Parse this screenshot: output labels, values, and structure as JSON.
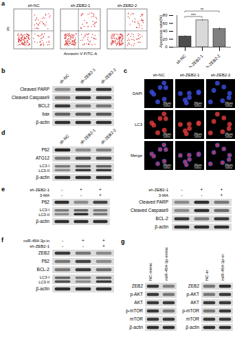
{
  "chart_data": {
    "type": "bar",
    "categories": [
      "sh-NC",
      "sh-ZEB2-1",
      "sh-ZEB2-2"
    ],
    "values": [
      27,
      68,
      46
    ],
    "errors": [
      2,
      1.5,
      3
    ],
    "ylabel": "Apoptosis rate(%)",
    "ylim": [
      0,
      80
    ],
    "yticks": [
      0,
      20,
      40,
      60,
      80
    ],
    "colors": [
      "#4d4d4d",
      "#d9d9d9",
      "#808080"
    ],
    "annotations": [
      {
        "text": "***",
        "from": 0,
        "to": 1
      },
      {
        "text": "**",
        "from": 0,
        "to": 2
      }
    ]
  },
  "figure": {
    "a": {
      "label": "a",
      "flow": {
        "samples": [
          "sh-NC",
          "sh-ZEB2-1",
          "sh-ZEB2-2"
        ],
        "x_label": "Annexin V FITC-A",
        "y_label": "PI"
      }
    },
    "b": {
      "label": "b",
      "blot": {
        "lanes": [
          "sh-NC",
          "sh-ZEB2-1",
          "sh-ZEB2-2"
        ],
        "rows": [
          {
            "label": "Cleaved PARP",
            "intensity": [
              0.4,
              0.8,
              0.8
            ]
          },
          {
            "label": "Cleaved Caspase9",
            "intensity": [
              0.5,
              0.8,
              0.75
            ]
          },
          {
            "label": "BCL2",
            "intensity": [
              0.8,
              0.5,
              0.5
            ]
          },
          {
            "label": "bax",
            "intensity": [
              0.6,
              0.65,
              0.65
            ]
          },
          {
            "label": "β-actin",
            "intensity": [
              0.85,
              0.85,
              0.85
            ]
          }
        ]
      }
    },
    "c": {
      "label": "c",
      "images": {
        "columns": [
          "sh-NC",
          "sh-ZEB2-1",
          "sh-ZEB2-2"
        ],
        "scale_bar": "20μm",
        "rows": [
          {
            "label": "DAPI",
            "colors": [
              "#3a4bd8"
            ]
          },
          {
            "label": "LC3",
            "colors": [
              "#d83a3a"
            ]
          },
          {
            "label": "Merge",
            "colors": [
              "#3a4bd8",
              "#d83a3a"
            ]
          }
        ]
      }
    },
    "d": {
      "label": "d",
      "blot": {
        "lanes": [
          "sh-NC",
          "sh-ZEB2-1",
          "sh-ZEB2-2"
        ],
        "rows": [
          {
            "label": "P62",
            "intensity": [
              0.9,
              0.4,
              0.45
            ]
          },
          {
            "label": "ATG12",
            "intensity": [
              0.5,
              0.7,
              0.7
            ]
          },
          {
            "label": [
              "LC3-I",
              "LC3-II"
            ],
            "intensity": [
              [
                0.5,
                0.6,
                0.6
              ],
              [
                0.4,
                0.8,
                0.8
              ]
            ]
          },
          {
            "label": "β-actin",
            "intensity": [
              0.85,
              0.85,
              0.85
            ]
          }
        ]
      }
    },
    "e": {
      "label": "e",
      "blots": [
        {
          "conditions": [
            {
              "name": "sh-ZEB2-1",
              "signs": [
                "-",
                "+",
                "+"
              ]
            },
            {
              "name": "3-MA",
              "signs": [
                "-",
                "-",
                "+"
              ]
            }
          ],
          "rows": [
            {
              "label": "P62",
              "intensity": [
                0.85,
                0.4,
                0.75
              ]
            },
            {
              "label": [
                "LC3-I",
                "LC3-II"
              ],
              "intensity": [
                [
                  0.5,
                  0.6,
                  0.5
                ],
                [
                  0.4,
                  0.85,
                  0.5
                ]
              ]
            },
            {
              "label": "β-actin",
              "intensity": [
                0.85,
                0.85,
                0.85
              ]
            }
          ]
        },
        {
          "conditions": [
            {
              "name": "sh-ZEB2-1",
              "signs": [
                "-",
                "+",
                "+"
              ]
            },
            {
              "name": "3-MA",
              "signs": [
                "-",
                "-",
                "+"
              ]
            }
          ],
          "rows": [
            {
              "label": "Cleaved PARP",
              "intensity": [
                0.4,
                0.85,
                0.5
              ]
            },
            {
              "label": "Cleaved Caspase9",
              "intensity": [
                0.4,
                0.85,
                0.55
              ]
            },
            {
              "label": "BCL-2",
              "intensity": [
                0.8,
                0.5,
                0.8
              ]
            },
            {
              "label": "β-actin",
              "intensity": [
                0.85,
                0.85,
                0.85
              ]
            }
          ]
        }
      ]
    },
    "f": {
      "label": "f",
      "blot": {
        "conditions": [
          {
            "name": "miR-454-3p-in",
            "signs": [
              "-",
              "+",
              "+"
            ]
          },
          {
            "name": "sh-ZEB2-1",
            "signs": [
              "-",
              "-",
              "+"
            ]
          }
        ],
        "rows": [
          {
            "label": "ZEB2",
            "intensity": [
              0.8,
              0.5,
              0.4
            ]
          },
          {
            "label": "P62",
            "intensity": [
              0.5,
              0.75,
              0.4
            ]
          },
          {
            "label": "BCL-2",
            "intensity": [
              0.5,
              0.8,
              0.55
            ]
          },
          {
            "label": [
              "LC3-I",
              "LC3-II"
            ],
            "intensity": [
              [
                0.6,
                0.5,
                0.6
              ],
              [
                0.7,
                0.4,
                0.8
              ]
            ]
          },
          {
            "label": "β-actin",
            "intensity": [
              0.85,
              0.85,
              0.85
            ]
          }
        ]
      }
    },
    "g": {
      "label": "g",
      "blots": [
        {
          "lanes": [
            "NC-mimic",
            "miR-454-3p-mimic"
          ],
          "rows": [
            {
              "label": "ZEB2",
              "intensity": [
                0.8,
                0.45
              ]
            },
            {
              "label": "p-AKT",
              "intensity": [
                0.8,
                0.5
              ]
            },
            {
              "label": "AKT",
              "intensity": [
                0.8,
                0.8
              ]
            },
            {
              "label": "p-mTOR",
              "intensity": [
                0.8,
                0.5
              ]
            },
            {
              "label": "mTOR",
              "intensity": [
                0.8,
                0.8
              ]
            },
            {
              "label": "β-actin",
              "intensity": [
                0.85,
                0.85
              ]
            }
          ]
        },
        {
          "lanes": [
            "NC-in",
            "miR-454-3p-in"
          ],
          "rows": [
            {
              "label": "ZEB2",
              "intensity": [
                0.5,
                0.85
              ]
            },
            {
              "label": "p-AKT",
              "intensity": [
                0.5,
                0.8
              ]
            },
            {
              "label": "AKT",
              "intensity": [
                0.8,
                0.8
              ]
            },
            {
              "label": "p-mTOR",
              "intensity": [
                0.5,
                0.8
              ]
            },
            {
              "label": "mTOR",
              "intensity": [
                0.8,
                0.8
              ]
            },
            {
              "label": "β-actin",
              "intensity": [
                0.85,
                0.85
              ]
            }
          ]
        }
      ]
    }
  }
}
